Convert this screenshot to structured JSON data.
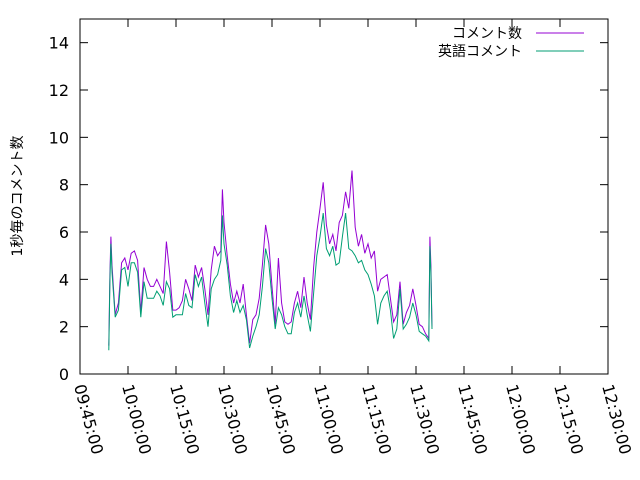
{
  "chart_data": {
    "type": "line",
    "ylabel": "1秒毎のコメント数",
    "xlabel": "",
    "ylim": [
      0,
      15
    ],
    "yticks": [
      0,
      2,
      4,
      6,
      8,
      10,
      12,
      14
    ],
    "xlim": [
      "09:45:00",
      "12:30:00"
    ],
    "xticks": [
      "09:45:00",
      "10:00:00",
      "10:15:00",
      "10:30:00",
      "10:45:00",
      "11:00:00",
      "11:15:00",
      "11:30:00",
      "11:45:00",
      "12:00:00",
      "12:15:00",
      "12:30:00"
    ],
    "grid": false,
    "legend_position": "top-right",
    "series": [
      {
        "name": "コメント数",
        "color": "#9400d3",
        "points": [
          [
            "09:54:00",
            1.2
          ],
          [
            "09:54:20",
            4.2
          ],
          [
            "09:54:40",
            5.8
          ],
          [
            "09:55:00",
            4.6
          ],
          [
            "09:56:00",
            2.5
          ],
          [
            "09:57:00",
            3.0
          ],
          [
            "09:58:00",
            4.7
          ],
          [
            "09:59:00",
            4.9
          ],
          [
            "10:00:00",
            4.4
          ],
          [
            "10:01:00",
            5.1
          ],
          [
            "10:02:00",
            5.2
          ],
          [
            "10:03:00",
            4.8
          ],
          [
            "10:04:00",
            2.6
          ],
          [
            "10:05:00",
            4.5
          ],
          [
            "10:06:00",
            4.0
          ],
          [
            "10:07:00",
            3.7
          ],
          [
            "10:08:00",
            3.7
          ],
          [
            "10:09:00",
            4.0
          ],
          [
            "10:10:00",
            3.7
          ],
          [
            "10:11:00",
            3.4
          ],
          [
            "10:12:00",
            5.6
          ],
          [
            "10:13:00",
            4.3
          ],
          [
            "10:14:00",
            2.7
          ],
          [
            "10:15:00",
            2.7
          ],
          [
            "10:16:00",
            2.8
          ],
          [
            "10:17:00",
            3.1
          ],
          [
            "10:18:00",
            4.0
          ],
          [
            "10:19:00",
            3.6
          ],
          [
            "10:20:00",
            3.1
          ],
          [
            "10:21:00",
            4.6
          ],
          [
            "10:22:00",
            4.1
          ],
          [
            "10:23:00",
            4.5
          ],
          [
            "10:24:00",
            3.6
          ],
          [
            "10:25:00",
            2.5
          ],
          [
            "10:26:00",
            4.4
          ],
          [
            "10:27:00",
            5.4
          ],
          [
            "10:28:00",
            5.0
          ],
          [
            "10:29:00",
            5.2
          ],
          [
            "10:29:30",
            7.8
          ],
          [
            "10:30:00",
            6.4
          ],
          [
            "10:31:00",
            5.0
          ],
          [
            "10:32:00",
            3.8
          ],
          [
            "10:33:00",
            3.0
          ],
          [
            "10:34:00",
            3.5
          ],
          [
            "10:35:00",
            3.0
          ],
          [
            "10:36:00",
            3.8
          ],
          [
            "10:37:00",
            2.5
          ],
          [
            "10:38:00",
            1.3
          ],
          [
            "10:39:00",
            2.3
          ],
          [
            "10:40:00",
            2.5
          ],
          [
            "10:41:00",
            3.2
          ],
          [
            "10:42:00",
            4.6
          ],
          [
            "10:43:00",
            6.3
          ],
          [
            "10:44:00",
            5.5
          ],
          [
            "10:45:00",
            3.7
          ],
          [
            "10:46:00",
            2.1
          ],
          [
            "10:47:00",
            4.9
          ],
          [
            "10:48:00",
            3.0
          ],
          [
            "10:49:00",
            2.2
          ],
          [
            "10:50:00",
            2.1
          ],
          [
            "10:51:00",
            2.2
          ],
          [
            "10:52:00",
            3.0
          ],
          [
            "10:53:00",
            3.5
          ],
          [
            "10:54:00",
            2.8
          ],
          [
            "10:55:00",
            4.1
          ],
          [
            "10:56:00",
            3.0
          ],
          [
            "10:57:00",
            2.3
          ],
          [
            "10:58:00",
            4.5
          ],
          [
            "10:59:00",
            6.0
          ],
          [
            "11:00:00",
            7.0
          ],
          [
            "11:01:00",
            8.1
          ],
          [
            "11:02:00",
            6.3
          ],
          [
            "11:03:00",
            5.5
          ],
          [
            "11:04:00",
            5.9
          ],
          [
            "11:05:00",
            5.2
          ],
          [
            "11:06:00",
            6.4
          ],
          [
            "11:07:00",
            6.7
          ],
          [
            "11:08:00",
            7.7
          ],
          [
            "11:09:00",
            7.0
          ],
          [
            "11:10:00",
            8.6
          ],
          [
            "11:11:00",
            6.2
          ],
          [
            "11:12:00",
            5.4
          ],
          [
            "11:13:00",
            5.9
          ],
          [
            "11:14:00",
            5.1
          ],
          [
            "11:15:00",
            5.5
          ],
          [
            "11:16:00",
            4.9
          ],
          [
            "11:17:00",
            5.2
          ],
          [
            "11:18:00",
            3.5
          ],
          [
            "11:19:00",
            4.0
          ],
          [
            "11:20:00",
            4.1
          ],
          [
            "11:21:00",
            4.2
          ],
          [
            "11:22:00",
            3.2
          ],
          [
            "11:23:00",
            2.2
          ],
          [
            "11:24:00",
            2.5
          ],
          [
            "11:25:00",
            3.9
          ],
          [
            "11:26:00",
            2.1
          ],
          [
            "11:27:00",
            2.6
          ],
          [
            "11:28:00",
            2.9
          ],
          [
            "11:29:00",
            3.6
          ],
          [
            "11:30:00",
            2.9
          ],
          [
            "11:31:00",
            2.1
          ],
          [
            "11:32:00",
            2.0
          ],
          [
            "11:33:00",
            1.7
          ],
          [
            "11:34:00",
            1.5
          ],
          [
            "11:34:20",
            5.8
          ],
          [
            "11:34:40",
            4.6
          ],
          [
            "11:35:00",
            2.0
          ]
        ]
      },
      {
        "name": "英語コメント",
        "color": "#009e73",
        "points": [
          [
            "09:54:00",
            1.0
          ],
          [
            "09:54:20",
            3.9
          ],
          [
            "09:54:40",
            5.5
          ],
          [
            "09:55:00",
            4.3
          ],
          [
            "09:56:00",
            2.4
          ],
          [
            "09:57:00",
            2.7
          ],
          [
            "09:58:00",
            4.4
          ],
          [
            "09:59:00",
            4.5
          ],
          [
            "10:00:00",
            3.7
          ],
          [
            "10:01:00",
            4.7
          ],
          [
            "10:02:00",
            4.7
          ],
          [
            "10:03:00",
            4.3
          ],
          [
            "10:04:00",
            2.4
          ],
          [
            "10:05:00",
            3.9
          ],
          [
            "10:06:00",
            3.2
          ],
          [
            "10:07:00",
            3.2
          ],
          [
            "10:08:00",
            3.2
          ],
          [
            "10:09:00",
            3.5
          ],
          [
            "10:10:00",
            3.3
          ],
          [
            "10:11:00",
            2.9
          ],
          [
            "10:12:00",
            3.9
          ],
          [
            "10:13:00",
            3.6
          ],
          [
            "10:14:00",
            2.4
          ],
          [
            "10:15:00",
            2.5
          ],
          [
            "10:16:00",
            2.5
          ],
          [
            "10:17:00",
            2.5
          ],
          [
            "10:18:00",
            3.4
          ],
          [
            "10:19:00",
            2.9
          ],
          [
            "10:20:00",
            2.8
          ],
          [
            "10:21:00",
            4.2
          ],
          [
            "10:22:00",
            3.7
          ],
          [
            "10:23:00",
            4.1
          ],
          [
            "10:24:00",
            3.0
          ],
          [
            "10:25:00",
            2.0
          ],
          [
            "10:26:00",
            3.6
          ],
          [
            "10:27:00",
            4.0
          ],
          [
            "10:28:00",
            4.2
          ],
          [
            "10:29:00",
            4.8
          ],
          [
            "10:29:30",
            6.7
          ],
          [
            "10:30:00",
            5.5
          ],
          [
            "10:31:00",
            4.6
          ],
          [
            "10:32:00",
            3.3
          ],
          [
            "10:33:00",
            2.6
          ],
          [
            "10:34:00",
            3.1
          ],
          [
            "10:35:00",
            2.6
          ],
          [
            "10:36:00",
            2.9
          ],
          [
            "10:37:00",
            2.3
          ],
          [
            "10:38:00",
            1.1
          ],
          [
            "10:39:00",
            1.6
          ],
          [
            "10:40:00",
            2.0
          ],
          [
            "10:41:00",
            2.5
          ],
          [
            "10:42:00",
            3.7
          ],
          [
            "10:43:00",
            5.3
          ],
          [
            "10:44:00",
            4.7
          ],
          [
            "10:45:00",
            3.2
          ],
          [
            "10:46:00",
            1.9
          ],
          [
            "10:47:00",
            2.8
          ],
          [
            "10:48:00",
            2.5
          ],
          [
            "10:49:00",
            2.0
          ],
          [
            "10:50:00",
            1.7
          ],
          [
            "10:51:00",
            1.7
          ],
          [
            "10:52:00",
            2.6
          ],
          [
            "10:53:00",
            3.0
          ],
          [
            "10:54:00",
            2.4
          ],
          [
            "10:55:00",
            3.3
          ],
          [
            "10:56:00",
            2.5
          ],
          [
            "10:57:00",
            1.8
          ],
          [
            "10:58:00",
            3.4
          ],
          [
            "10:59:00",
            5.0
          ],
          [
            "11:00:00",
            5.8
          ],
          [
            "11:01:00",
            6.8
          ],
          [
            "11:02:00",
            5.3
          ],
          [
            "11:03:00",
            5.0
          ],
          [
            "11:04:00",
            5.4
          ],
          [
            "11:05:00",
            4.6
          ],
          [
            "11:06:00",
            4.7
          ],
          [
            "11:07:00",
            5.8
          ],
          [
            "11:08:00",
            6.8
          ],
          [
            "11:09:00",
            5.3
          ],
          [
            "11:10:00",
            5.2
          ],
          [
            "11:11:00",
            5.0
          ],
          [
            "11:12:00",
            4.7
          ],
          [
            "11:13:00",
            4.8
          ],
          [
            "11:14:00",
            4.4
          ],
          [
            "11:15:00",
            4.2
          ],
          [
            "11:16:00",
            3.8
          ],
          [
            "11:17:00",
            3.3
          ],
          [
            "11:18:00",
            2.1
          ],
          [
            "11:19:00",
            3.0
          ],
          [
            "11:20:00",
            3.3
          ],
          [
            "11:21:00",
            3.5
          ],
          [
            "11:22:00",
            2.7
          ],
          [
            "11:23:00",
            1.5
          ],
          [
            "11:24:00",
            1.9
          ],
          [
            "11:25:00",
            3.6
          ],
          [
            "11:26:00",
            1.9
          ],
          [
            "11:27:00",
            2.1
          ],
          [
            "11:28:00",
            2.4
          ],
          [
            "11:29:00",
            3.0
          ],
          [
            "11:30:00",
            2.5
          ],
          [
            "11:31:00",
            1.8
          ],
          [
            "11:32:00",
            1.7
          ],
          [
            "11:33:00",
            1.6
          ],
          [
            "11:34:00",
            1.4
          ],
          [
            "11:34:20",
            5.4
          ],
          [
            "11:34:40",
            4.3
          ],
          [
            "11:35:00",
            1.9
          ]
        ]
      }
    ]
  }
}
